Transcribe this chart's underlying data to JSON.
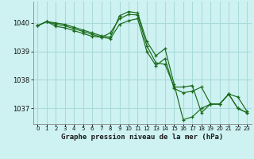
{
  "title": "Graphe pression niveau de la mer (hPa)",
  "background_color": "#cef2f2",
  "grid_color": "#aadada",
  "line_color": "#1a6b1a",
  "x_ticks": [
    0,
    1,
    2,
    3,
    4,
    5,
    6,
    7,
    8,
    9,
    10,
    11,
    12,
    13,
    14,
    15,
    16,
    17,
    18,
    19,
    20,
    21,
    22,
    23
  ],
  "ylim": [
    1036.45,
    1040.75
  ],
  "yticks": [
    1037,
    1038,
    1039,
    1040
  ],
  "series": {
    "line1": [
      1039.9,
      1040.05,
      1040.0,
      1039.95,
      1039.85,
      1039.75,
      1039.65,
      1039.55,
      1039.5,
      1040.25,
      1040.4,
      1040.35,
      1039.35,
      1038.85,
      1039.1,
      1037.85,
      1036.6,
      1036.7,
      1037.0,
      1037.15,
      1037.15,
      1037.5,
      1037.0,
      1036.85
    ],
    "line2": [
      1039.9,
      1040.05,
      1039.95,
      1039.9,
      1039.8,
      1039.7,
      1039.6,
      1039.5,
      1039.65,
      1040.15,
      1040.3,
      1040.28,
      1039.2,
      1038.6,
      1038.55,
      1037.75,
      1037.75,
      1037.8,
      1036.85,
      1037.15,
      1037.15,
      1037.5,
      1037.0,
      1036.85
    ],
    "line3": [
      1039.9,
      1040.05,
      1039.88,
      1039.83,
      1039.73,
      1039.63,
      1039.53,
      1039.5,
      1039.45,
      1039.95,
      1040.08,
      1040.15,
      1039.0,
      1038.5,
      1038.75,
      1037.7,
      1037.55,
      1037.6,
      1037.75,
      1037.15,
      1037.15,
      1037.5,
      1037.4,
      1036.9
    ]
  }
}
